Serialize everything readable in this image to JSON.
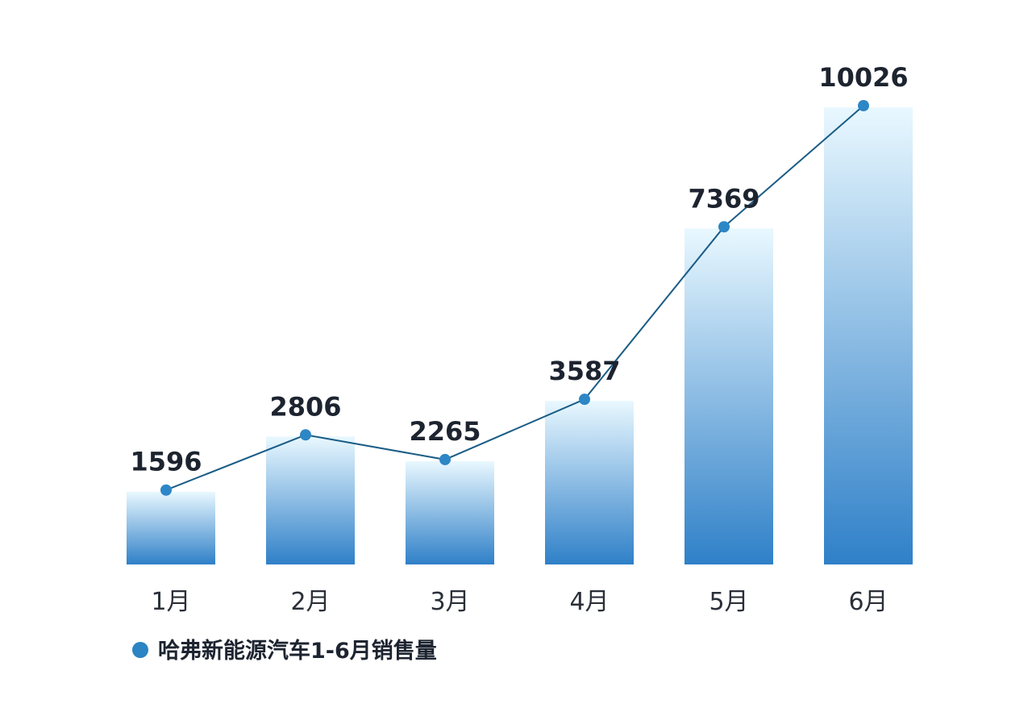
{
  "chart_data": {
    "type": "bar",
    "categories": [
      "1月",
      "2月",
      "3月",
      "4月",
      "5月",
      "6月"
    ],
    "values": [
      1596,
      2806,
      2265,
      3587,
      7369,
      10026
    ],
    "ylim": [
      0,
      10026
    ],
    "overlay_line": true,
    "grid": false,
    "legend": {
      "label": "哈弗新能源汽车1-6月销售量",
      "position": "bottom-left"
    },
    "colors": {
      "bar_top": "#e9f8ff",
      "bar_bottom": "#2f80c8",
      "line": "#1a5c86",
      "marker": "#2d86c6",
      "legend_dot": "#2b84c3"
    }
  }
}
